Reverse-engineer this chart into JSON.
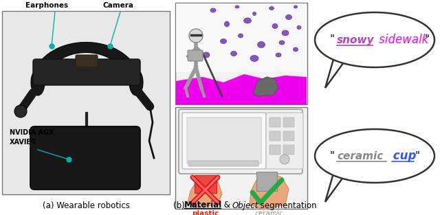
{
  "background_color": "#ffffff",
  "caption_a": "(a) Wearable robotics",
  "label_earphones": "Earphones",
  "label_camera": "Camera",
  "label_nvidia": "NVIDIA AGX\nXAVIER",
  "label_plastic": "plastic",
  "label_ceramic": "ceramic",
  "color_teal": "#00b0b0",
  "color_magenta": "#ee00ee",
  "color_snowy": "#bb44bb",
  "color_sidewalk": "#ff00ff",
  "color_ceramic_text": "#3355ff",
  "color_plastic_label": "#ee2200",
  "color_ceramic_label": "#999999",
  "color_bubble_stroke": "#333333",
  "color_black": "#000000",
  "color_white": "#ffffff",
  "figsize": [
    6.4,
    3.13
  ],
  "dpi": 100
}
